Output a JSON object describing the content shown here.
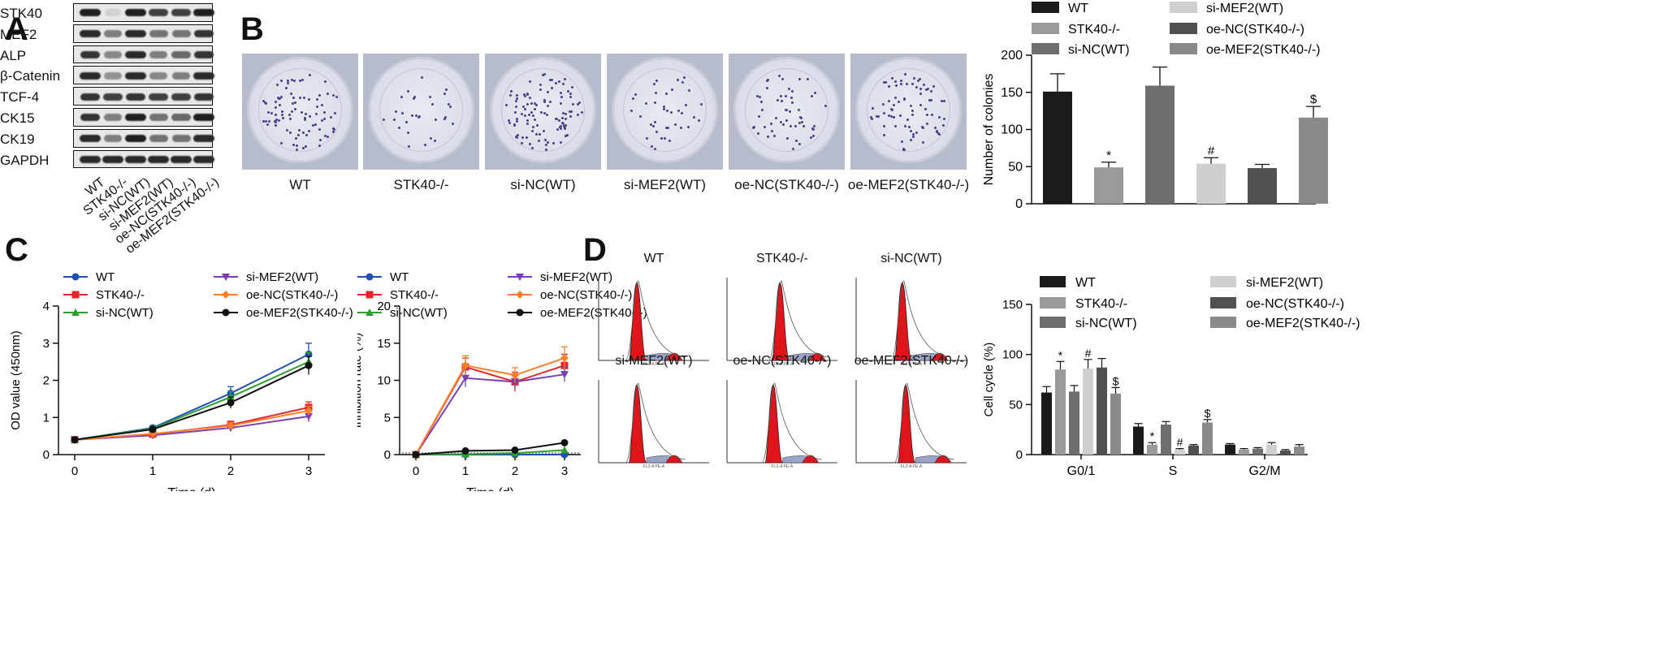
{
  "panels": {
    "a": "A",
    "b": "B",
    "c": "C",
    "d": "D"
  },
  "blot": {
    "rows": [
      "STK40",
      "MEF2",
      "ALP",
      "β-Catenin",
      "TCF-4",
      "CK15",
      "CK19",
      "GAPDH"
    ],
    "lanes": [
      "WT",
      "STK40-/-",
      "si-NC(WT)",
      "si-MEF2(WT)",
      "oe-NC(STK40-/-)",
      "oe-MEF2(STK40-/-)"
    ],
    "intensity": [
      [
        0.9,
        0.05,
        0.9,
        0.75,
        0.75,
        0.9
      ],
      [
        0.85,
        0.45,
        0.85,
        0.5,
        0.5,
        0.8
      ],
      [
        0.8,
        0.4,
        0.85,
        0.45,
        0.55,
        0.8
      ],
      [
        0.85,
        0.35,
        0.85,
        0.4,
        0.45,
        0.85
      ],
      [
        0.8,
        0.75,
        0.8,
        0.75,
        0.75,
        0.8
      ],
      [
        0.8,
        0.45,
        0.9,
        0.5,
        0.55,
        0.9
      ],
      [
        0.85,
        0.45,
        0.9,
        0.5,
        0.5,
        0.85
      ],
      [
        0.85,
        0.85,
        0.85,
        0.85,
        0.85,
        0.85
      ]
    ]
  },
  "groups": [
    "WT",
    "STK40-/-",
    "si-NC(WT)",
    "si-MEF2(WT)",
    "oe-NC(STK40-/-)",
    "oe-MEF2(STK40-/-)"
  ],
  "colors": {
    "bars": [
      "#1a1a1a",
      "#9a9a9a",
      "#6e6e6e",
      "#cfcfcf",
      "#505050",
      "#8a8a8a"
    ],
    "lines": [
      "#1f4fb4",
      "#e8262a",
      "#2ca02c",
      "#7b3fb0",
      "#ff7f27",
      "#111111"
    ],
    "red_peak": "#e0141b"
  },
  "chart_data": [
    {
      "type": "bar",
      "ylabel": "Number of colonies",
      "ylim": [
        0,
        200
      ],
      "yticks": [
        "0",
        "50",
        "100",
        "150",
        "200"
      ],
      "categories": [
        "WT",
        "STK40-/-",
        "si-NC(WT)",
        "si-MEF2(WT)",
        "oe-NC(STK40-/-)",
        "oe-MEF2(STK40-/-)"
      ],
      "values": [
        151,
        49,
        159,
        54,
        48,
        116
      ],
      "errors": [
        24,
        7,
        25,
        8,
        5,
        15
      ],
      "annotations": [
        "",
        "*",
        "",
        "#",
        "",
        "$"
      ]
    },
    {
      "type": "line",
      "xlabel": "Time (d)",
      "ylabel": "OD value (450nm)",
      "ylim": [
        0,
        4
      ],
      "yticks": [
        "0",
        "1",
        "2",
        "3",
        "4"
      ],
      "x": [
        0,
        1,
        2,
        3
      ],
      "xticks": [
        "0",
        "1",
        "2",
        "3"
      ],
      "markers": [
        "●",
        "■",
        "▲",
        "▼",
        "◆",
        "●"
      ],
      "series": [
        {
          "name": "WT",
          "values": [
            0.4,
            0.72,
            1.65,
            2.7
          ],
          "errors": [
            0.05,
            0.06,
            0.18,
            0.3
          ]
        },
        {
          "name": "STK40-/-",
          "values": [
            0.4,
            0.55,
            0.8,
            1.27
          ],
          "errors": [
            0.05,
            0.05,
            0.1,
            0.15
          ]
        },
        {
          "name": "si-NC(WT)",
          "values": [
            0.4,
            0.7,
            1.55,
            2.5
          ],
          "errors": [
            0.05,
            0.06,
            0.15,
            0.25
          ]
        },
        {
          "name": "si-MEF2(WT)",
          "values": [
            0.4,
            0.52,
            0.72,
            1.03
          ],
          "errors": [
            0.05,
            0.05,
            0.08,
            0.15
          ]
        },
        {
          "name": "oe-NC(STK40-/-)",
          "values": [
            0.4,
            0.56,
            0.78,
            1.18
          ],
          "errors": [
            0.05,
            0.05,
            0.08,
            0.12
          ]
        },
        {
          "name": "oe-MEF2(STK40-/-)",
          "values": [
            0.4,
            0.68,
            1.4,
            2.4
          ],
          "errors": [
            0.05,
            0.06,
            0.15,
            0.25
          ]
        }
      ]
    },
    {
      "type": "line",
      "xlabel": "Time (d)",
      "ylabel": "Inhibition rate (%)",
      "ylim": [
        0,
        20
      ],
      "yticks": [
        "0",
        "5",
        "10",
        "15",
        "20"
      ],
      "x": [
        0,
        1,
        2,
        3
      ],
      "xticks": [
        "0",
        "1",
        "2",
        "3"
      ],
      "markers": [
        "●",
        "■",
        "▲",
        "▼",
        "◆",
        "●"
      ],
      "series": [
        {
          "name": "WT",
          "values": [
            0,
            0,
            0,
            0
          ],
          "errors": [
            0,
            0,
            0,
            0
          ]
        },
        {
          "name": "STK40-/-",
          "values": [
            0,
            11.8,
            9.8,
            12.0
          ],
          "errors": [
            0,
            1.2,
            1.3,
            1.5
          ]
        },
        {
          "name": "si-NC(WT)",
          "values": [
            0,
            0.05,
            0.2,
            0.6
          ],
          "errors": [
            0,
            0,
            0,
            0
          ]
        },
        {
          "name": "si-MEF2(WT)",
          "values": [
            0,
            10.3,
            9.8,
            10.8
          ],
          "errors": [
            0,
            1.2,
            1.0,
            1.0
          ]
        },
        {
          "name": "oe-NC(STK40-/-)",
          "values": [
            0,
            12.0,
            10.7,
            13.0
          ],
          "errors": [
            0,
            1.3,
            1.0,
            1.5
          ]
        },
        {
          "name": "oe-MEF2(STK40-/-)",
          "values": [
            0,
            0.5,
            0.6,
            1.6
          ],
          "errors": [
            0,
            0,
            0,
            0
          ]
        }
      ]
    },
    {
      "type": "bar",
      "ylabel": "Cell cycle (%)",
      "ylim": [
        0,
        150
      ],
      "yticks": [
        "0",
        "50",
        "100",
        "150"
      ],
      "categories": [
        "G0/1",
        "S",
        "G2/M"
      ],
      "series": [
        {
          "name": "WT",
          "values": [
            62,
            28,
            10
          ],
          "errors": [
            6,
            3,
            1
          ]
        },
        {
          "name": "STK40-/-",
          "values": [
            85,
            10,
            5
          ],
          "errors": [
            8,
            2,
            1
          ]
        },
        {
          "name": "si-NC(WT)",
          "values": [
            63,
            30,
            6
          ],
          "errors": [
            6,
            3,
            1
          ]
        },
        {
          "name": "si-MEF2(WT)",
          "values": [
            86,
            5,
            10
          ],
          "errors": [
            9,
            1,
            2
          ]
        },
        {
          "name": "oe-NC(STK40-/-)",
          "values": [
            87,
            9,
            4
          ],
          "errors": [
            9,
            1,
            1
          ]
        },
        {
          "name": "oe-MEF2(STK40-/-)",
          "values": [
            61,
            32,
            8
          ],
          "errors": [
            6,
            3,
            2
          ]
        }
      ],
      "annotations": [
        [
          "",
          "*",
          "",
          "#",
          "",
          "$"
        ],
        [
          "",
          "*",
          "",
          "#",
          "",
          "$"
        ],
        [
          "",
          "",
          "",
          "",
          "",
          ""
        ]
      ]
    }
  ],
  "flow": {
    "titles": [
      "WT",
      "STK40-/-",
      "si-NC(WT)",
      "si-MEF2(WT)",
      "oe-NC(STK40-/-)",
      "oe-MEF2(STK40-/-)"
    ],
    "xaxis_label": "FL2-A PE-A"
  }
}
